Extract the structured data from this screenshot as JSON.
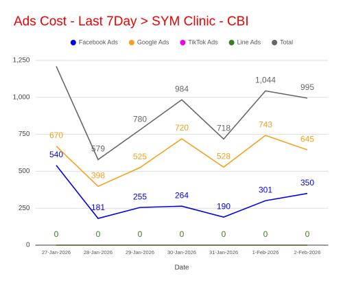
{
  "chart_data": {
    "type": "line",
    "title": "Ads Cost - Last 7Day > SYM Clinic - CBI",
    "x_label": "Date",
    "categories": [
      "27-Jan-2026",
      "28-Jan-2026",
      "29-Jan-2026",
      "30-Jan-2026",
      "31-Jan-2026",
      "1-Feb-2026",
      "2-Feb-2026"
    ],
    "series": [
      {
        "name": "Facebook Ads",
        "color": "#0000ee",
        "show_labels": true,
        "values": [
          540,
          181,
          255,
          264,
          190,
          301,
          350
        ]
      },
      {
        "name": "Google Ads",
        "color": "#f4a11d",
        "show_labels": true,
        "values": [
          670,
          398,
          525,
          720,
          528,
          743,
          645
        ]
      },
      {
        "name": "TikTok Ads",
        "color": "#ee00ee",
        "show_labels": false,
        "values": [
          0,
          0,
          0,
          0,
          0,
          0,
          0
        ]
      },
      {
        "name": "Line Ads",
        "color": "#3a7d1e",
        "show_labels": true,
        "values": [
          0,
          0,
          0,
          0,
          0,
          0,
          0
        ]
      },
      {
        "name": "Total",
        "color": "#666666",
        "show_labels": true,
        "values": [
          1210,
          579,
          780,
          984,
          718,
          1044,
          995
        ],
        "value_labels": [
          null,
          "579",
          "780",
          "984",
          "718",
          "1,044",
          "995"
        ]
      }
    ],
    "ylim": [
      0,
      1250
    ],
    "yticks": [
      0,
      250,
      500,
      750,
      {
        "value": 1000,
        "label": "1,000"
      },
      {
        "value": 1250,
        "label": "1,250"
      }
    ],
    "grid": true
  }
}
